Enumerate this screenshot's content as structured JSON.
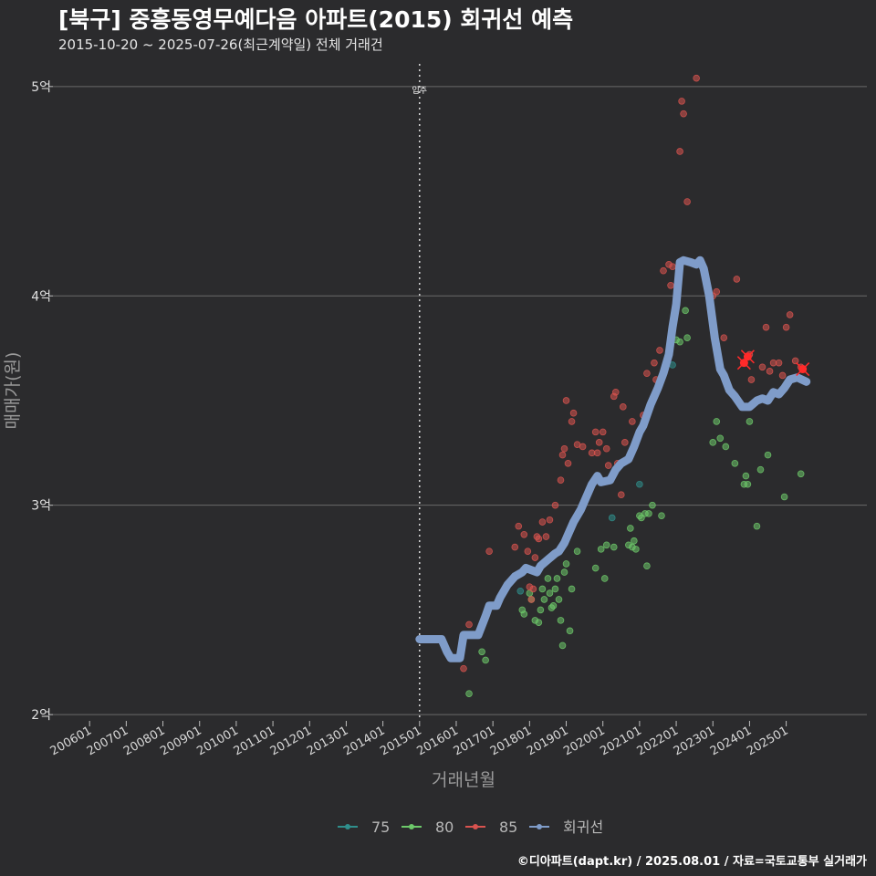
{
  "header": {
    "title": "[북구] 중흥동영무예다음 아파트(2015) 회귀선 예측",
    "subtitle": "2015-10-20 ~ 2025-07-26(최근계약일) 전체 거래건"
  },
  "footer": {
    "credit": "©디아파트(dapt.kr) / 2025.08.01 / 자료=국토교통부 실거래가"
  },
  "chart_data": {
    "type": "scatter",
    "xlabel": "거래년월",
    "ylabel": "매매가(원)",
    "ylim": [
      1.97,
      5.13
    ],
    "yticks": [
      {
        "v": 2,
        "label": "2억"
      },
      {
        "v": 3,
        "label": "3억"
      },
      {
        "v": 4,
        "label": "4억"
      },
      {
        "v": 5,
        "label": "5억"
      }
    ],
    "xlim": [
      2005.0,
      2027.2
    ],
    "xticks": [
      "200601",
      "200701",
      "200801",
      "200901",
      "201001",
      "201101",
      "201201",
      "201301",
      "201401",
      "201501",
      "201601",
      "201701",
      "201801",
      "201901",
      "202001",
      "202101",
      "202201",
      "202301",
      "202401",
      "202501"
    ],
    "vline": {
      "x": 2015.0,
      "label": "입주"
    },
    "grid": true,
    "legend_position": "bottom",
    "colors": {
      "75": "#2f8f8c",
      "80": "#6dc96a",
      "85": "#d9534f",
      "regression": "#7f9cc9",
      "highlight": "#ff2a2a"
    },
    "series": [
      {
        "name": "75",
        "points": [
          [
            2017.75,
            2.59
          ],
          [
            2020.25,
            2.94
          ],
          [
            2021.0,
            3.1
          ],
          [
            2021.9,
            3.67
          ]
        ]
      },
      {
        "name": "80",
        "points": [
          [
            2016.35,
            2.1
          ],
          [
            2016.7,
            2.3
          ],
          [
            2016.8,
            2.26
          ],
          [
            2017.8,
            2.5
          ],
          [
            2017.85,
            2.48
          ],
          [
            2018.0,
            2.58
          ],
          [
            2018.05,
            2.55
          ],
          [
            2018.15,
            2.45
          ],
          [
            2018.25,
            2.44
          ],
          [
            2018.3,
            2.5
          ],
          [
            2018.35,
            2.6
          ],
          [
            2018.4,
            2.55
          ],
          [
            2018.5,
            2.65
          ],
          [
            2018.55,
            2.58
          ],
          [
            2018.6,
            2.51
          ],
          [
            2018.65,
            2.52
          ],
          [
            2018.7,
            2.6
          ],
          [
            2018.75,
            2.65
          ],
          [
            2018.8,
            2.55
          ],
          [
            2018.85,
            2.45
          ],
          [
            2018.9,
            2.33
          ],
          [
            2018.95,
            2.68
          ],
          [
            2019.0,
            2.72
          ],
          [
            2019.1,
            2.4
          ],
          [
            2019.15,
            2.6
          ],
          [
            2019.3,
            2.78
          ],
          [
            2019.8,
            2.7
          ],
          [
            2019.95,
            2.79
          ],
          [
            2020.05,
            2.65
          ],
          [
            2020.1,
            2.81
          ],
          [
            2020.3,
            2.8
          ],
          [
            2020.7,
            2.81
          ],
          [
            2020.75,
            2.89
          ],
          [
            2020.8,
            2.8
          ],
          [
            2020.85,
            2.83
          ],
          [
            2020.9,
            2.79
          ],
          [
            2021.0,
            2.95
          ],
          [
            2021.05,
            2.94
          ],
          [
            2021.15,
            2.96
          ],
          [
            2021.2,
            2.71
          ],
          [
            2021.25,
            2.96
          ],
          [
            2021.35,
            3.0
          ],
          [
            2021.6,
            2.95
          ],
          [
            2022.0,
            3.79
          ],
          [
            2022.1,
            3.78
          ],
          [
            2022.25,
            3.93
          ],
          [
            2022.3,
            3.8
          ],
          [
            2023.0,
            3.3
          ],
          [
            2023.1,
            3.4
          ],
          [
            2023.2,
            3.32
          ],
          [
            2023.35,
            3.28
          ],
          [
            2023.6,
            3.2
          ],
          [
            2023.85,
            3.1
          ],
          [
            2023.9,
            3.14
          ],
          [
            2023.95,
            3.1
          ],
          [
            2024.0,
            3.4
          ],
          [
            2024.2,
            2.9
          ],
          [
            2024.3,
            3.17
          ],
          [
            2024.5,
            3.24
          ],
          [
            2024.95,
            3.04
          ],
          [
            2025.4,
            3.15
          ]
        ]
      },
      {
        "name": "85",
        "points": [
          [
            2016.2,
            2.22
          ],
          [
            2016.35,
            2.43
          ],
          [
            2016.9,
            2.78
          ],
          [
            2017.6,
            2.8
          ],
          [
            2017.7,
            2.9
          ],
          [
            2017.85,
            2.86
          ],
          [
            2017.95,
            2.78
          ],
          [
            2018.0,
            2.61
          ],
          [
            2018.05,
            2.55
          ],
          [
            2018.1,
            2.6
          ],
          [
            2018.15,
            2.75
          ],
          [
            2018.2,
            2.85
          ],
          [
            2018.25,
            2.84
          ],
          [
            2018.35,
            2.92
          ],
          [
            2018.45,
            2.85
          ],
          [
            2018.55,
            2.93
          ],
          [
            2018.7,
            3.0
          ],
          [
            2018.85,
            3.12
          ],
          [
            2018.9,
            3.24
          ],
          [
            2018.95,
            3.27
          ],
          [
            2019.0,
            3.5
          ],
          [
            2019.05,
            3.2
          ],
          [
            2019.15,
            3.4
          ],
          [
            2019.2,
            3.44
          ],
          [
            2019.3,
            3.29
          ],
          [
            2019.45,
            3.28
          ],
          [
            2019.7,
            3.25
          ],
          [
            2019.8,
            3.35
          ],
          [
            2019.85,
            3.25
          ],
          [
            2019.9,
            3.3
          ],
          [
            2020.0,
            3.35
          ],
          [
            2020.1,
            3.27
          ],
          [
            2020.15,
            3.19
          ],
          [
            2020.3,
            3.52
          ],
          [
            2020.35,
            3.54
          ],
          [
            2020.4,
            3.2
          ],
          [
            2020.5,
            3.05
          ],
          [
            2020.55,
            3.47
          ],
          [
            2020.6,
            3.3
          ],
          [
            2020.8,
            3.4
          ],
          [
            2021.1,
            3.43
          ],
          [
            2021.2,
            3.63
          ],
          [
            2021.4,
            3.68
          ],
          [
            2021.45,
            3.6
          ],
          [
            2021.55,
            3.74
          ],
          [
            2021.65,
            4.12
          ],
          [
            2021.8,
            4.15
          ],
          [
            2021.85,
            4.05
          ],
          [
            2021.9,
            4.14
          ],
          [
            2022.1,
            4.69
          ],
          [
            2022.15,
            4.93
          ],
          [
            2022.2,
            4.87
          ],
          [
            2022.3,
            4.45
          ],
          [
            2022.55,
            5.04
          ],
          [
            2023.0,
            4.0
          ],
          [
            2023.1,
            4.02
          ],
          [
            2023.3,
            3.8
          ],
          [
            2023.65,
            4.08
          ],
          [
            2024.0,
            3.72
          ],
          [
            2024.05,
            3.6
          ],
          [
            2024.35,
            3.66
          ],
          [
            2024.45,
            3.85
          ],
          [
            2024.55,
            3.64
          ],
          [
            2024.65,
            3.68
          ],
          [
            2024.8,
            3.68
          ],
          [
            2024.9,
            3.62
          ],
          [
            2025.0,
            3.85
          ],
          [
            2025.1,
            3.91
          ],
          [
            2025.25,
            3.69
          ],
          [
            2025.4,
            3.66
          ]
        ]
      }
    ],
    "highlights": [
      [
        2023.85,
        3.68
      ],
      [
        2023.95,
        3.71
      ],
      [
        2025.45,
        3.65
      ]
    ],
    "regression": [
      [
        2015.0,
        2.36
      ],
      [
        2015.6,
        2.36
      ],
      [
        2015.75,
        2.3
      ],
      [
        2015.85,
        2.27
      ],
      [
        2016.1,
        2.27
      ],
      [
        2016.2,
        2.38
      ],
      [
        2016.6,
        2.38
      ],
      [
        2016.8,
        2.47
      ],
      [
        2016.9,
        2.52
      ],
      [
        2017.1,
        2.52
      ],
      [
        2017.2,
        2.56
      ],
      [
        2017.4,
        2.62
      ],
      [
        2017.6,
        2.66
      ],
      [
        2017.8,
        2.68
      ],
      [
        2017.9,
        2.7
      ],
      [
        2018.2,
        2.68
      ],
      [
        2018.3,
        2.71
      ],
      [
        2018.5,
        2.74
      ],
      [
        2018.7,
        2.77
      ],
      [
        2018.8,
        2.78
      ],
      [
        2018.95,
        2.82
      ],
      [
        2019.05,
        2.86
      ],
      [
        2019.2,
        2.92
      ],
      [
        2019.4,
        2.98
      ],
      [
        2019.55,
        3.04
      ],
      [
        2019.7,
        3.1
      ],
      [
        2019.85,
        3.14
      ],
      [
        2019.95,
        3.11
      ],
      [
        2020.2,
        3.12
      ],
      [
        2020.35,
        3.17
      ],
      [
        2020.5,
        3.2
      ],
      [
        2020.7,
        3.22
      ],
      [
        2020.85,
        3.28
      ],
      [
        2021.0,
        3.35
      ],
      [
        2021.1,
        3.38
      ],
      [
        2021.3,
        3.48
      ],
      [
        2021.5,
        3.56
      ],
      [
        2021.65,
        3.63
      ],
      [
        2021.8,
        3.72
      ],
      [
        2021.9,
        3.85
      ],
      [
        2022.0,
        3.96
      ],
      [
        2022.1,
        4.16
      ],
      [
        2022.2,
        4.17
      ],
      [
        2022.4,
        4.16
      ],
      [
        2022.55,
        4.15
      ],
      [
        2022.65,
        4.17
      ],
      [
        2022.75,
        4.13
      ],
      [
        2022.9,
        4.0
      ],
      [
        2023.05,
        3.8
      ],
      [
        2023.2,
        3.65
      ],
      [
        2023.3,
        3.62
      ],
      [
        2023.45,
        3.55
      ],
      [
        2023.6,
        3.52
      ],
      [
        2023.8,
        3.47
      ],
      [
        2024.0,
        3.47
      ],
      [
        2024.2,
        3.5
      ],
      [
        2024.35,
        3.51
      ],
      [
        2024.5,
        3.5
      ],
      [
        2024.65,
        3.54
      ],
      [
        2024.8,
        3.53
      ],
      [
        2024.95,
        3.56
      ],
      [
        2025.1,
        3.6
      ],
      [
        2025.3,
        3.61
      ],
      [
        2025.55,
        3.59
      ]
    ]
  }
}
